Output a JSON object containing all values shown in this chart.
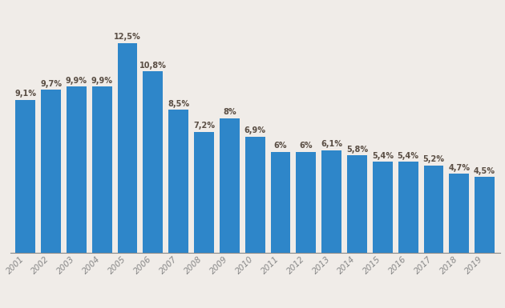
{
  "years": [
    "2001",
    "2002",
    "2003",
    "2004",
    "2005",
    "2006",
    "2007",
    "2008",
    "2009",
    "2010",
    "2011",
    "2012",
    "2013",
    "2014",
    "2015",
    "2016",
    "2017",
    "2018",
    "2019"
  ],
  "values": [
    9.1,
    9.7,
    9.9,
    9.9,
    12.5,
    10.8,
    8.5,
    7.2,
    8.0,
    6.9,
    6.0,
    6.0,
    6.1,
    5.8,
    5.4,
    5.4,
    5.2,
    4.7,
    4.5
  ],
  "labels": [
    "9,1%",
    "9,7%",
    "9,9%",
    "9,9%",
    "12,5%",
    "10,8%",
    "8,5%",
    "7,2%",
    "8%",
    "6,9%",
    "6%",
    "6%",
    "6,1%",
    "5,8%",
    "5,4%",
    "5,4%",
    "5,2%",
    "4,7%",
    "4,5%"
  ],
  "bar_color": "#2e86c9",
  "background_color": "#f0ece8",
  "grid_color": "#ffffff",
  "label_color": "#5a4e44",
  "ylim": [
    0,
    14.5
  ],
  "bar_width": 0.78,
  "label_fontsize": 7.0,
  "tick_fontsize": 7.5
}
